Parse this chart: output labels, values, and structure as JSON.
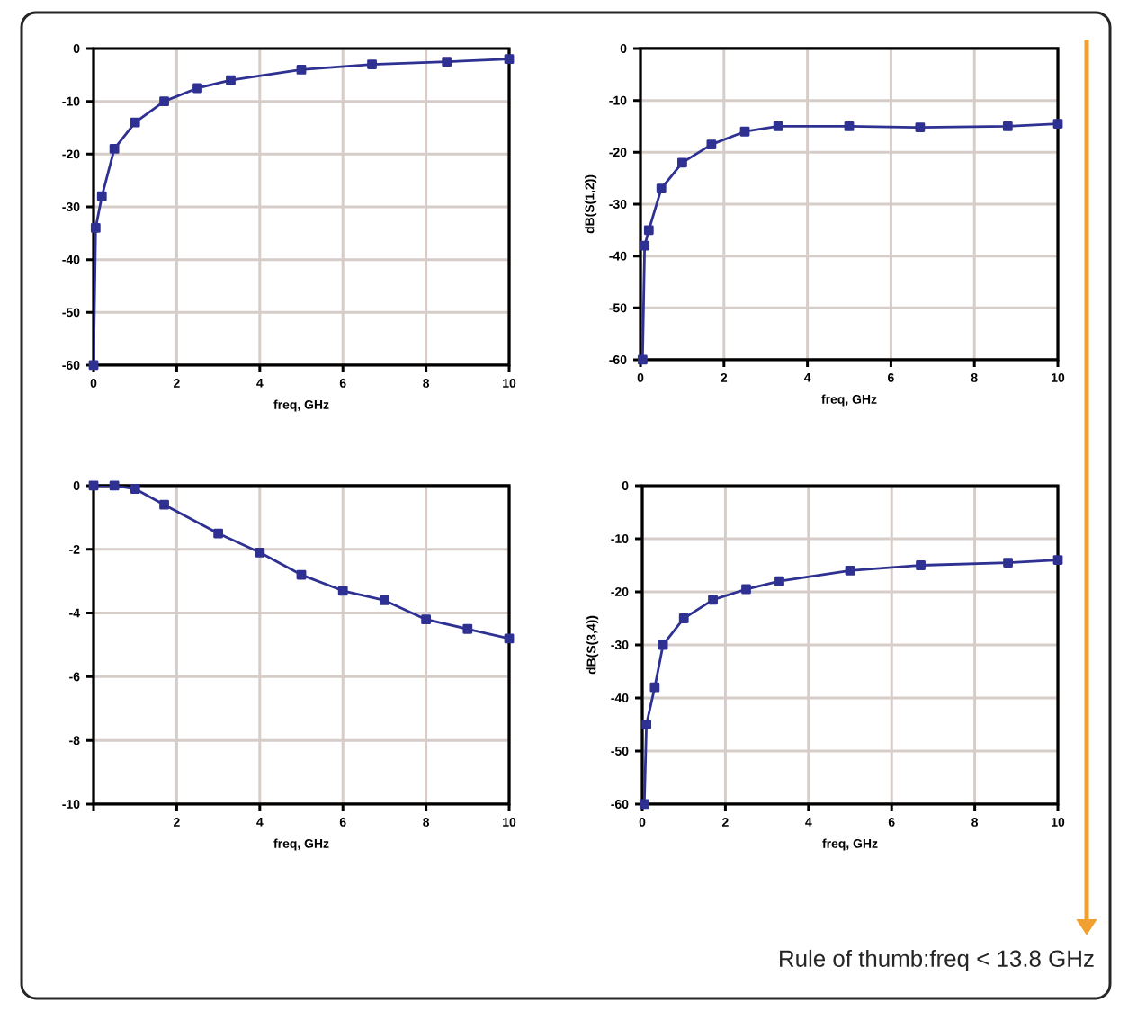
{
  "chart_data": [
    {
      "type": "line",
      "xlabel": "freq, GHz",
      "x": [
        0,
        0.05,
        0.2,
        0.5,
        1,
        1.7,
        2.5,
        3.3,
        5,
        6.7,
        8.5,
        10
      ],
      "series": [
        {
          "color": "#2e3192",
          "values": [
            -60,
            -34,
            -28,
            -19,
            -14,
            -10,
            -7.5,
            -6,
            -4,
            -3,
            -2.5,
            -2
          ]
        }
      ],
      "xlim": [
        0,
        10
      ],
      "xticks": [
        0,
        2,
        4,
        6,
        8,
        10
      ],
      "ylim": [
        -60,
        0
      ],
      "yticks": [
        -60,
        -50,
        -40,
        -30,
        -20,
        -10,
        0
      ],
      "grid": true,
      "marker": "square",
      "line_style": "solid"
    },
    {
      "type": "line",
      "xlabel": "freq, GHz",
      "ylabel": "dB(S(1,2))",
      "x": [
        0.05,
        0.1,
        0.2,
        0.5,
        1,
        1.7,
        2.5,
        3.3,
        5,
        6.7,
        8.8,
        10
      ],
      "series": [
        {
          "color": "#2e3192",
          "values": [
            -60,
            -38,
            -35,
            -27,
            -22,
            -18.5,
            -16,
            -15,
            -15,
            -15.2,
            -15,
            -14.5
          ]
        }
      ],
      "xlim": [
        0,
        10
      ],
      "xticks": [
        0,
        2,
        4,
        6,
        8,
        10
      ],
      "ylim": [
        -60,
        0
      ],
      "yticks": [
        -60,
        -50,
        -40,
        -30,
        -20,
        -10,
        0
      ],
      "grid": true,
      "marker": "square",
      "line_style": "solid"
    },
    {
      "type": "line",
      "xlabel": "freq, GHz",
      "x": [
        0,
        0.5,
        1,
        1.7,
        3,
        4,
        5,
        6,
        7,
        8,
        9,
        10
      ],
      "series": [
        {
          "color": "#2e3192",
          "values": [
            0,
            0,
            -0.1,
            -0.6,
            -1.5,
            -2.1,
            -2.8,
            -3.3,
            -3.6,
            -4.2,
            -4.5,
            -4.8
          ]
        }
      ],
      "xlim": [
        0,
        10
      ],
      "xticks": [
        {
          "value": 0,
          "label": null
        },
        2,
        4,
        6,
        8,
        10
      ],
      "ylim": [
        -10,
        0
      ],
      "yticks": [
        -10,
        -8,
        -6,
        -4,
        -2,
        0
      ],
      "grid": true,
      "marker": "square",
      "line_style": "solid"
    },
    {
      "type": "line",
      "xlabel": "freq, GHz",
      "ylabel": "dB(S(3,4))",
      "x": [
        0.05,
        0.1,
        0.3,
        0.5,
        1,
        1.7,
        2.5,
        3.3,
        5,
        6.7,
        8.8,
        10
      ],
      "series": [
        {
          "color": "#2e3192",
          "values": [
            -60,
            -45,
            -38,
            -30,
            -25,
            -21.5,
            -19.5,
            -18,
            -16,
            -15,
            -14.5,
            -14
          ]
        }
      ],
      "xlim": [
        0,
        10
      ],
      "xticks": [
        0,
        2,
        4,
        6,
        8,
        10
      ],
      "ylim": [
        -60,
        0
      ],
      "yticks": [
        -60,
        -50,
        -40,
        -30,
        -20,
        -10,
        0
      ],
      "grid": true,
      "marker": "square",
      "line_style": "solid",
      "annotations": [
        "Rule of thumb:freq < 13.8 GHz"
      ]
    }
  ]
}
